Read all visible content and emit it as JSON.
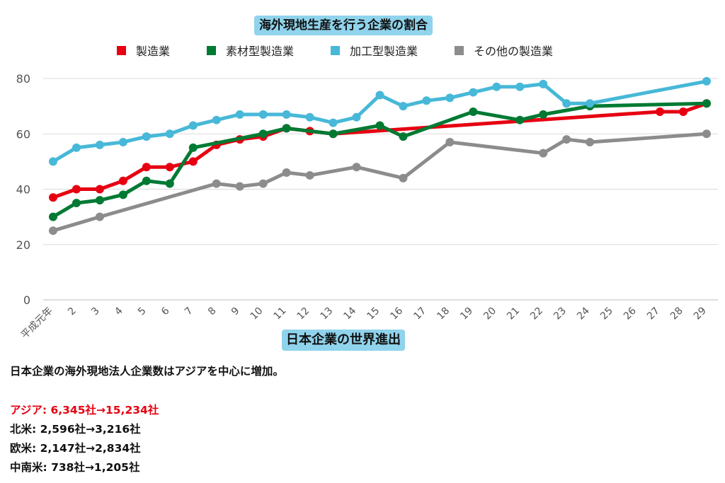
{
  "chart_data": {
    "type": "line",
    "title": "海外現地生産を行う企業の割合",
    "x_ticks": [
      "平成元年",
      "2",
      "3",
      "4",
      "5",
      "6",
      "7",
      "8",
      "9",
      "10",
      "11",
      "12",
      "13",
      "14",
      "15",
      "16",
      "17",
      "18",
      "19",
      "20",
      "21",
      "22",
      "23",
      "24",
      "25",
      "26",
      "27",
      "28",
      "29"
    ],
    "ylim": [
      0,
      80
    ],
    "y_ticks": [
      0,
      20,
      40,
      60,
      80
    ],
    "grid": true,
    "legend_position": "top",
    "series": [
      {
        "name": "製造業",
        "color": "#e60012",
        "points": [
          [
            1,
            37
          ],
          [
            2,
            40
          ],
          [
            3,
            40
          ],
          [
            4,
            43
          ],
          [
            5,
            48
          ],
          [
            6,
            48
          ],
          [
            7,
            50
          ],
          [
            8,
            56
          ],
          [
            9,
            58
          ],
          [
            10,
            59
          ],
          [
            11,
            62
          ],
          [
            12,
            61
          ],
          [
            13,
            60
          ],
          [
            27,
            68
          ],
          [
            28,
            68
          ],
          [
            29,
            71
          ]
        ]
      },
      {
        "name": "素材型製造業",
        "color": "#007a33",
        "points": [
          [
            1,
            30
          ],
          [
            2,
            35
          ],
          [
            3,
            36
          ],
          [
            4,
            38
          ],
          [
            5,
            43
          ],
          [
            6,
            42
          ],
          [
            7,
            55
          ],
          [
            10,
            60
          ],
          [
            11,
            62
          ],
          [
            13,
            60
          ],
          [
            15,
            63
          ],
          [
            16,
            59
          ],
          [
            19,
            68
          ],
          [
            21,
            65
          ],
          [
            22,
            67
          ],
          [
            24,
            70
          ],
          [
            29,
            71
          ]
        ]
      },
      {
        "name": "加工型製造業",
        "color": "#47b8d8",
        "points": [
          [
            1,
            50
          ],
          [
            2,
            55
          ],
          [
            3,
            56
          ],
          [
            4,
            57
          ],
          [
            5,
            59
          ],
          [
            6,
            60
          ],
          [
            7,
            63
          ],
          [
            8,
            65
          ],
          [
            9,
            67
          ],
          [
            10,
            67
          ],
          [
            11,
            67
          ],
          [
            12,
            66
          ],
          [
            13,
            64
          ],
          [
            14,
            66
          ],
          [
            15,
            74
          ],
          [
            16,
            70
          ],
          [
            17,
            72
          ],
          [
            18,
            73
          ],
          [
            19,
            75
          ],
          [
            20,
            77
          ],
          [
            21,
            77
          ],
          [
            22,
            78
          ],
          [
            23,
            71
          ],
          [
            24,
            71
          ],
          [
            29,
            79
          ]
        ]
      },
      {
        "name": "その他の製造業",
        "color": "#8c8c8c",
        "points": [
          [
            1,
            25
          ],
          [
            3,
            30
          ],
          [
            8,
            42
          ],
          [
            9,
            41
          ],
          [
            10,
            42
          ],
          [
            11,
            46
          ],
          [
            12,
            45
          ],
          [
            14,
            48
          ],
          [
            16,
            44
          ],
          [
            18,
            57
          ],
          [
            22,
            53
          ],
          [
            23,
            58
          ],
          [
            24,
            57
          ],
          [
            29,
            60
          ]
        ]
      }
    ]
  },
  "section": {
    "title": "日本企業の世界進出",
    "summary": "日本企業の海外現地法人企業数はアジアを中心に増加。",
    "regions": [
      {
        "text": "アジア: 6,345社→15,234社",
        "highlight": true
      },
      {
        "text": "北米: 2,596社→3,216社",
        "highlight": false
      },
      {
        "text": "欧米: 2,147社→2,834社",
        "highlight": false
      },
      {
        "text": "中南米: 738社→1,205社",
        "highlight": false
      }
    ]
  }
}
